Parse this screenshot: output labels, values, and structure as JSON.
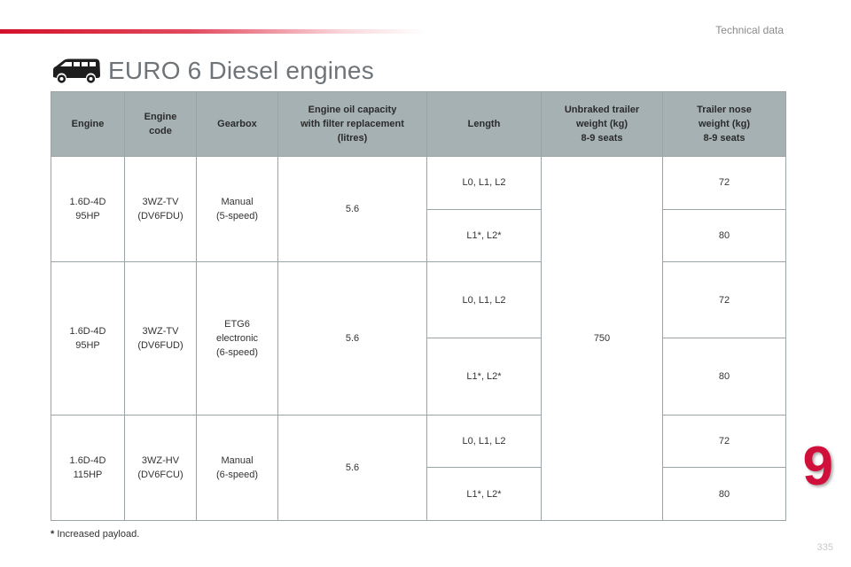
{
  "header": {
    "section_label": "Technical data",
    "title": "EURO 6 Diesel engines"
  },
  "table": {
    "columns": [
      "Engine",
      "Engine\ncode",
      "Gearbox",
      "Engine oil capacity\nwith filter replacement\n(litres)",
      "Length",
      "Unbraked trailer\nweight (kg)\n8-9 seats",
      "Trailer nose\nweight (kg)\n8-9 seats"
    ],
    "unbraked_weight": "750",
    "groups": [
      {
        "engine": "1.6D-4D\n95HP",
        "code": "3WZ-TV\n(DV6FDU)",
        "gearbox": "Manual\n(5-speed)",
        "oil": "5.6",
        "rows": [
          {
            "length": "L0, L1, L2",
            "nose": "72"
          },
          {
            "length": "L1*, L2*",
            "nose": "80"
          }
        ]
      },
      {
        "engine": "1.6D-4D\n95HP",
        "code": "3WZ-TV\n(DV6FUD)",
        "gearbox": "ETG6\nelectronic\n(6-speed)",
        "oil": "5.6",
        "rows": [
          {
            "length": "L0, L1, L2",
            "nose": "72"
          },
          {
            "length": "L1*, L2*",
            "nose": "80"
          }
        ]
      },
      {
        "engine": "1.6D-4D\n115HP",
        "code": "3WZ-HV\n(DV6FCU)",
        "gearbox": "Manual\n(6-speed)",
        "oil": "5.6",
        "rows": [
          {
            "length": "L0, L1, L2",
            "nose": "72"
          },
          {
            "length": "L1*, L2*",
            "nose": "80"
          }
        ]
      }
    ]
  },
  "footnote": {
    "star": "*",
    "text": " Increased payload."
  },
  "chapter_number": "9",
  "page_number": "335",
  "icons": {
    "vehicle": "van-icon"
  },
  "colors": {
    "accent": "#d0103a",
    "header_bg": "#a6b1b3",
    "title": "#6f7478"
  }
}
